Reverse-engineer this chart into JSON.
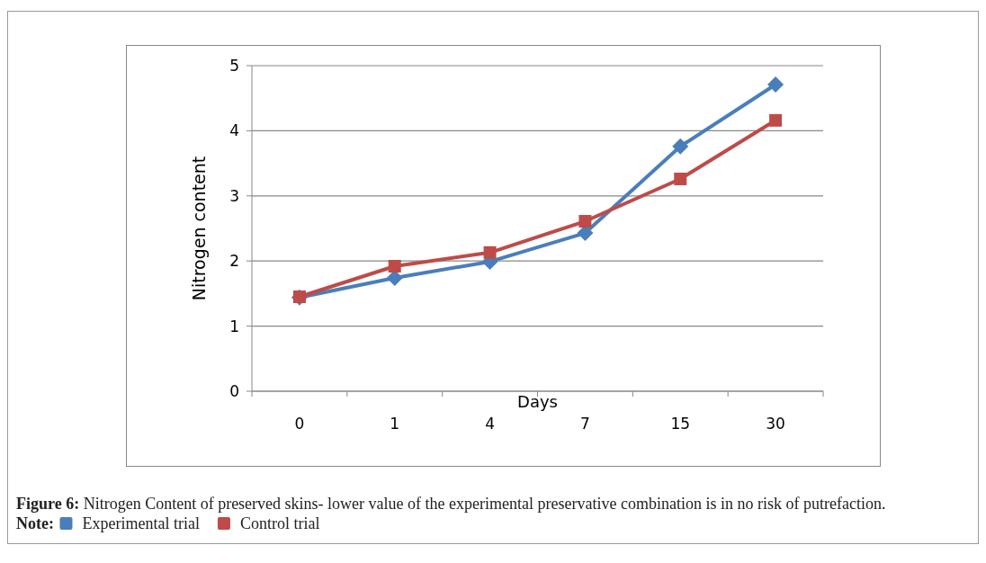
{
  "chart_data": {
    "type": "line",
    "xlabel": "Days",
    "ylabel": "Nitrogen content",
    "categories": [
      "0",
      "1",
      "4",
      "7",
      "15",
      "30"
    ],
    "series": [
      {
        "name": "Experimental trial",
        "color": "#4a7ebb",
        "marker": "diamond",
        "values": [
          1.44,
          1.74,
          1.99,
          2.43,
          3.76,
          4.71
        ]
      },
      {
        "name": "Control trial",
        "color": "#be4b48",
        "marker": "square",
        "values": [
          1.45,
          1.92,
          2.13,
          2.61,
          3.26,
          4.16
        ]
      }
    ],
    "ylim": [
      0,
      5
    ],
    "yticks": [
      0,
      1,
      2,
      3,
      4,
      5
    ],
    "grid": "y",
    "legend": "bottom",
    "legend_title": "Note:",
    "annotations": [
      "Figure 6: Nitrogen Content of preserved skins- lower value of the experimental preservative combination is in no risk of putrefaction."
    ]
  }
}
